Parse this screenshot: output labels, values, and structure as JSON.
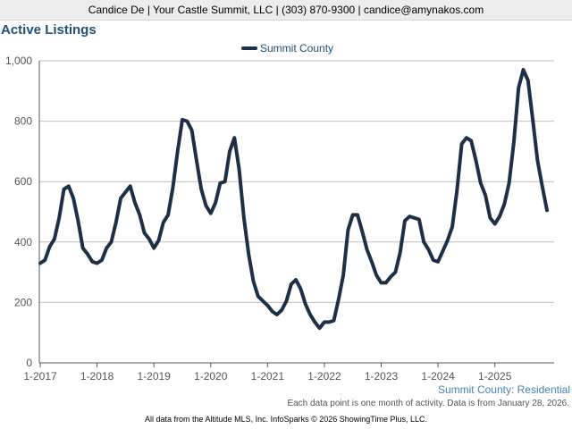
{
  "header": {
    "contact": "Candice De | Your Castle Summit, LLC | (303) 870-9300 | candice@amynakos.com"
  },
  "colors": {
    "line": "#1d3047",
    "title": "#1f4e79",
    "grid": "#bfbfbf",
    "axis": "#555555"
  },
  "chart_data": {
    "type": "line",
    "title": "Active Listings",
    "legend_position": "top-center",
    "grid": true,
    "ylim": [
      0,
      1000
    ],
    "yticks": [
      0,
      200,
      400,
      600,
      800,
      1000
    ],
    "ytick_labels": [
      "0",
      "200",
      "400",
      "600",
      "800",
      "1,000"
    ],
    "xticks": [
      "2017-01",
      "2018-01",
      "2019-01",
      "2020-01",
      "2021-01",
      "2022-01",
      "2023-01",
      "2024-01",
      "2025-01"
    ],
    "xtick_labels": [
      "1-2017",
      "1-2018",
      "1-2019",
      "1-2020",
      "1-2021",
      "1-2022",
      "1-2023",
      "1-2024",
      "1-2025"
    ],
    "x": [
      "2017-01",
      "2017-02",
      "2017-03",
      "2017-04",
      "2017-05",
      "2017-06",
      "2017-07",
      "2017-08",
      "2017-09",
      "2017-10",
      "2017-11",
      "2017-12",
      "2018-01",
      "2018-02",
      "2018-03",
      "2018-04",
      "2018-05",
      "2018-06",
      "2018-07",
      "2018-08",
      "2018-09",
      "2018-10",
      "2018-11",
      "2018-12",
      "2019-01",
      "2019-02",
      "2019-03",
      "2019-04",
      "2019-05",
      "2019-06",
      "2019-07",
      "2019-08",
      "2019-09",
      "2019-10",
      "2019-11",
      "2019-12",
      "2020-01",
      "2020-02",
      "2020-03",
      "2020-04",
      "2020-05",
      "2020-06",
      "2020-07",
      "2020-08",
      "2020-09",
      "2020-10",
      "2020-11",
      "2020-12",
      "2021-01",
      "2021-02",
      "2021-03",
      "2021-04",
      "2021-05",
      "2021-06",
      "2021-07",
      "2021-08",
      "2021-09",
      "2021-10",
      "2021-11",
      "2021-12",
      "2022-01",
      "2022-02",
      "2022-03",
      "2022-04",
      "2022-05",
      "2022-06",
      "2022-07",
      "2022-08",
      "2022-09",
      "2022-10",
      "2022-11",
      "2022-12",
      "2023-01",
      "2023-02",
      "2023-03",
      "2023-04",
      "2023-05",
      "2023-06",
      "2023-07",
      "2023-08",
      "2023-09",
      "2023-10",
      "2023-11",
      "2023-12",
      "2024-01",
      "2024-02",
      "2024-03",
      "2024-04",
      "2024-05",
      "2024-06",
      "2024-07",
      "2024-08",
      "2024-09",
      "2024-10",
      "2024-11",
      "2024-12",
      "2025-01",
      "2025-02",
      "2025-03",
      "2025-04",
      "2025-05",
      "2025-06",
      "2025-07",
      "2025-08",
      "2025-09",
      "2025-10",
      "2025-11",
      "2025-12"
    ],
    "series": [
      {
        "name": "Summit County",
        "values": [
          330,
          340,
          385,
          410,
          480,
          575,
          585,
          545,
          470,
          380,
          360,
          335,
          330,
          340,
          380,
          400,
          465,
          545,
          565,
          585,
          530,
          490,
          430,
          410,
          380,
          405,
          465,
          490,
          580,
          700,
          805,
          800,
          770,
          670,
          575,
          520,
          495,
          530,
          595,
          600,
          700,
          745,
          640,
          480,
          360,
          270,
          220,
          205,
          190,
          170,
          160,
          175,
          205,
          260,
          275,
          245,
          195,
          160,
          135,
          115,
          135,
          135,
          140,
          210,
          290,
          440,
          490,
          490,
          435,
          375,
          335,
          290,
          265,
          265,
          285,
          300,
          365,
          470,
          485,
          480,
          475,
          400,
          375,
          340,
          335,
          370,
          405,
          450,
          570,
          725,
          745,
          735,
          670,
          595,
          555,
          480,
          460,
          485,
          525,
          595,
          730,
          910,
          970,
          935,
          805,
          670,
          585,
          505
        ]
      }
    ]
  },
  "captions": {
    "series_label": "Summit County: Residential",
    "footnote": "Each data point is one month of activity. Data is from January 28, 2026.",
    "footer": "All data from the Altitude MLS, Inc. InfoSparks © 2026 ShowingTime Plus, LLC."
  }
}
